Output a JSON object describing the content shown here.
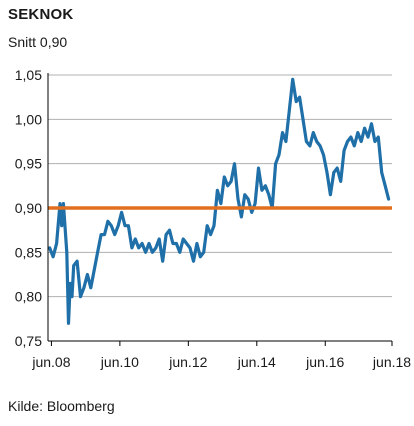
{
  "header": {
    "title": "SEKNOK",
    "subtitle": "Snitt 0,90"
  },
  "footer": {
    "source": "Kilde: Bloomberg"
  },
  "colors": {
    "series": "#1f6fa8",
    "average": "#e07020",
    "grid": "#b0b0b0",
    "axis": "#000000"
  },
  "chart_data": {
    "type": "line",
    "title": "SEKNOK",
    "subtitle": "Snitt 0,90",
    "xlabel": "",
    "ylabel": "",
    "xlim": [
      2008.35,
      2018.4
    ],
    "ylim": [
      0.75,
      1.05
    ],
    "y_ticks": [
      0.75,
      0.8,
      0.85,
      0.9,
      0.95,
      1.0,
      1.05
    ],
    "y_tick_labels": [
      "0,75",
      "0,80",
      "0,85",
      "0,90",
      "0,95",
      "1,00",
      "1,05"
    ],
    "x_ticks": [
      2008.45,
      2010.45,
      2012.45,
      2014.45,
      2016.45,
      2018.45
    ],
    "x_tick_labels": [
      "jun.08",
      "jun.10",
      "jun.12",
      "jun.14",
      "jun.16",
      "jun.18"
    ],
    "grid": "horizontal",
    "average": 0.9,
    "series": [
      {
        "x": [
          2008.4,
          2008.5,
          2008.6,
          2008.7,
          2008.75,
          2008.8,
          2008.9,
          2008.95,
          2009.0,
          2009.05,
          2009.1,
          2009.2,
          2009.3,
          2009.4,
          2009.5,
          2009.6,
          2009.7,
          2009.8,
          2009.9,
          2010.0,
          2010.1,
          2010.2,
          2010.3,
          2010.4,
          2010.5,
          2010.6,
          2010.7,
          2010.8,
          2010.9,
          2011.0,
          2011.1,
          2011.2,
          2011.3,
          2011.4,
          2011.5,
          2011.6,
          2011.7,
          2011.8,
          2011.9,
          2012.0,
          2012.1,
          2012.2,
          2012.3,
          2012.4,
          2012.5,
          2012.6,
          2012.7,
          2012.8,
          2012.9,
          2013.0,
          2013.1,
          2013.2,
          2013.3,
          2013.4,
          2013.5,
          2013.6,
          2013.7,
          2013.8,
          2013.9,
          2014.0,
          2014.1,
          2014.2,
          2014.3,
          2014.4,
          2014.5,
          2014.6,
          2014.7,
          2014.8,
          2014.9,
          2015.0,
          2015.1,
          2015.2,
          2015.3,
          2015.4,
          2015.5,
          2015.6,
          2015.7,
          2015.8,
          2015.9,
          2016.0,
          2016.1,
          2016.2,
          2016.3,
          2016.4,
          2016.5,
          2016.6,
          2016.7,
          2016.8,
          2016.9,
          2017.0,
          2017.1,
          2017.2,
          2017.3,
          2017.4,
          2017.5,
          2017.6,
          2017.7,
          2017.8,
          2017.9,
          2018.0,
          2018.1,
          2018.2,
          2018.3
        ],
        "y": [
          0.855,
          0.845,
          0.86,
          0.905,
          0.88,
          0.905,
          0.85,
          0.77,
          0.815,
          0.8,
          0.835,
          0.84,
          0.8,
          0.81,
          0.825,
          0.81,
          0.83,
          0.85,
          0.87,
          0.87,
          0.885,
          0.88,
          0.87,
          0.88,
          0.895,
          0.88,
          0.88,
          0.855,
          0.865,
          0.855,
          0.86,
          0.85,
          0.86,
          0.85,
          0.855,
          0.865,
          0.84,
          0.87,
          0.875,
          0.86,
          0.86,
          0.85,
          0.865,
          0.86,
          0.855,
          0.84,
          0.86,
          0.845,
          0.85,
          0.88,
          0.87,
          0.88,
          0.92,
          0.905,
          0.935,
          0.925,
          0.93,
          0.95,
          0.91,
          0.89,
          0.915,
          0.91,
          0.895,
          0.905,
          0.945,
          0.92,
          0.925,
          0.915,
          0.9,
          0.95,
          0.96,
          0.985,
          0.975,
          1.01,
          1.045,
          1.02,
          1.025,
          1.0,
          0.975,
          0.97,
          0.985,
          0.975,
          0.97,
          0.96,
          0.94,
          0.915,
          0.94,
          0.945,
          0.93,
          0.965,
          0.975,
          0.98,
          0.97,
          0.985,
          0.975,
          0.99,
          0.98,
          0.995,
          0.975,
          0.98,
          0.94,
          0.925,
          0.91
        ]
      }
    ]
  }
}
